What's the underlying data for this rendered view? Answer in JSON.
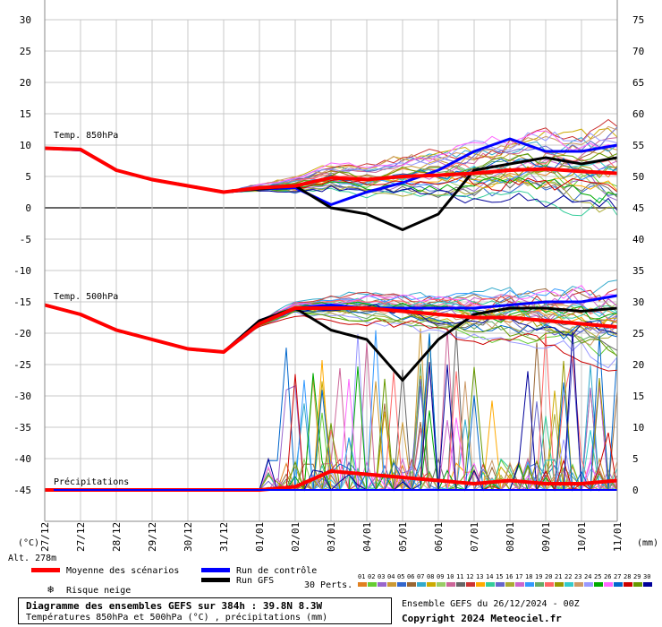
{
  "chart_data": {
    "type": "line",
    "title": "Diagramme des ensembles GEFS sur 384h : 39.8N 8.3W",
    "subtitle": "Températures 850hPa et 500hPa (°C) , précipitations (mm)",
    "dates": [
      "27/12",
      "27/12",
      "28/12",
      "29/12",
      "30/12",
      "31/12",
      "01/01",
      "02/01",
      "03/01",
      "04/01",
      "05/01",
      "06/01",
      "07/01",
      "08/01",
      "09/01",
      "10/01",
      "11/01"
    ],
    "left_axis": {
      "unit": "(°C)",
      "ticks": [
        30,
        25,
        20,
        15,
        10,
        5,
        0,
        -5,
        -10,
        -15,
        -20,
        -25,
        -30,
        -35,
        -40,
        -45
      ]
    },
    "right_axis": {
      "unit": "(mm)",
      "ticks": [
        75,
        70,
        65,
        60,
        55,
        50,
        45,
        40,
        35,
        30,
        25,
        20,
        15,
        10,
        5,
        0
      ]
    },
    "panel_labels": {
      "t850": "Temp. 850hPa",
      "t500": "Temp. 500hPa",
      "precip": "Précipitations"
    },
    "altitude_label": "Alt. 278m",
    "series": [
      {
        "name": "Moyenne des scénarios",
        "color": "#ff0000",
        "t850": [
          9.5,
          9.3,
          6,
          4.5,
          3.5,
          2.5,
          3.2,
          3.5,
          4.8,
          4.5,
          5,
          5.2,
          5.5,
          6,
          6.2,
          5.8,
          5.5
        ],
        "t500": [
          -15.5,
          -17,
          -19.5,
          -21,
          -22.5,
          -23,
          -18.5,
          -16,
          -16,
          -16,
          -16.5,
          -17,
          -17.5,
          -17.5,
          -18,
          -18.5,
          -19
        ],
        "precip": [
          0,
          0,
          0,
          0,
          0,
          0,
          0,
          0.5,
          3,
          2.5,
          2,
          1.5,
          1,
          1.5,
          1,
          1,
          1.5
        ]
      },
      {
        "name": "Run de contrôle",
        "color": "#0000ff",
        "t850": [
          9.5,
          9.2,
          6,
          4.5,
          3.5,
          2.5,
          3,
          3.2,
          0.5,
          2.5,
          4,
          6,
          9,
          11,
          9,
          9,
          10
        ],
        "t500": [
          -15.5,
          -17,
          -19.5,
          -21,
          -22.5,
          -23,
          -18,
          -16,
          -15.5,
          -16,
          -16,
          -16,
          -16,
          -15.5,
          -15,
          -15,
          -14
        ]
      },
      {
        "name": "Run GFS",
        "color": "#000000",
        "t850": [
          9.5,
          9.3,
          6,
          4.5,
          3.5,
          2.5,
          3,
          3.5,
          0,
          -1,
          -3.5,
          -1,
          6,
          7,
          8,
          7,
          8
        ],
        "t500": [
          -15.5,
          -17,
          -19.5,
          -21,
          -22.5,
          -23,
          -18,
          -16,
          -19.5,
          -21,
          -27.5,
          -21,
          -17,
          -16,
          -16,
          -16.5,
          -16
        ]
      }
    ],
    "perturbation_count": 30
  },
  "legend": {
    "mean": "Moyenne des scénarios",
    "control": "Run de contrôle",
    "gfs": "Run GFS",
    "snow": "Risque neige",
    "perts": "30 Perts.",
    "pert_numbers": [
      "01",
      "02",
      "03",
      "04",
      "05",
      "06",
      "07",
      "08",
      "09",
      "10",
      "11",
      "12",
      "13",
      "14",
      "15",
      "16",
      "17",
      "18",
      "19",
      "20",
      "21",
      "22",
      "23",
      "24",
      "25",
      "26",
      "27",
      "28",
      "29",
      "30"
    ],
    "pert_colors": [
      "#e08020",
      "#66cc33",
      "#9966cc",
      "#cc9933",
      "#3366cc",
      "#996633",
      "#33aacc",
      "#ccaa00",
      "#99cc66",
      "#cc6699",
      "#666666",
      "#cc3333",
      "#ffaa00",
      "#33cc99",
      "#6666cc",
      "#aaaa33",
      "#cc66cc",
      "#3399ff",
      "#66aa66",
      "#ff6666",
      "#999900",
      "#33cccc",
      "#cc9966",
      "#9999ff",
      "#00aa00",
      "#ff66ff",
      "#0066cc",
      "#cc0000",
      "#669900",
      "#000099"
    ]
  },
  "footer": {
    "title": "Diagramme des ensembles GEFS sur 384h : 39.8N 8.3W",
    "subtitle": "Températures 850hPa et 500hPa (°C) , précipitations (mm)",
    "run": "Ensemble GEFS du 26/12/2024 - 00Z",
    "copyright": "Copyright 2024 Meteociel.fr"
  }
}
